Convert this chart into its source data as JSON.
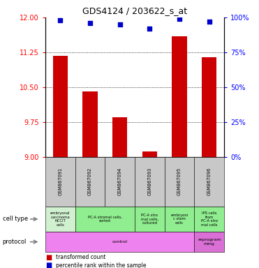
{
  "title": "GDS4124 / 203622_s_at",
  "samples": [
    "GSM867091",
    "GSM867092",
    "GSM867094",
    "GSM867093",
    "GSM867095",
    "GSM867096"
  ],
  "transformed_counts": [
    11.18,
    10.4,
    9.85,
    9.12,
    11.6,
    11.15
  ],
  "percentile_ranks": [
    98,
    96,
    95,
    92,
    99,
    97
  ],
  "ylim_left": [
    9,
    12
  ],
  "ylim_right": [
    0,
    100
  ],
  "yticks_left": [
    9,
    9.75,
    10.5,
    11.25,
    12
  ],
  "yticks_right": [
    0,
    25,
    50,
    75,
    100
  ],
  "bar_color": "#cc0000",
  "dot_color": "#0000cc",
  "cell_groups": [
    {
      "label": "embryonal\ncarcinoma\nNCCIT\ncells",
      "start": 0,
      "end": 1,
      "color": "#d0f0d0"
    },
    {
      "label": "PC-A stromal cells,\nsorted",
      "start": 1,
      "end": 3,
      "color": "#90ee90"
    },
    {
      "label": "PC-A stro\nmal cells,\ncultured",
      "start": 3,
      "end": 4,
      "color": "#90ee90"
    },
    {
      "label": "embryoni\nc stem\ncells",
      "start": 4,
      "end": 5,
      "color": "#90ee90"
    },
    {
      "label": "IPS cells\nfrom\nPC-A stro\nmal cells",
      "start": 5,
      "end": 6,
      "color": "#90ee90"
    }
  ],
  "protocol_groups": [
    {
      "label": "control",
      "start": 0,
      "end": 5,
      "color": "#ee82ee"
    },
    {
      "label": "reprogram\nming",
      "start": 5,
      "end": 6,
      "color": "#da70d6"
    }
  ],
  "sample_box_color": "#c8c8c8",
  "grid_color": "black",
  "grid_style": "dotted",
  "grid_lw": 0.6,
  "bar_width": 0.5,
  "title_fontsize": 9,
  "tick_fontsize": 7,
  "label_fontsize": 6,
  "annotation_fontsize": 4.5,
  "cell_type_label": "cell type",
  "protocol_label": "protocol"
}
